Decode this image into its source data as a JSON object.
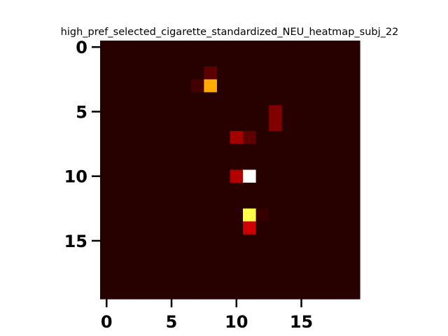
{
  "chart_data": {
    "type": "heatmap",
    "title": "high_pref_selected_cigarette_standardized_NEU_heatmap_subj_22",
    "xlabel": "",
    "ylabel": "",
    "rows": 20,
    "cols": 20,
    "x_ticks": [
      0,
      5,
      10,
      15
    ],
    "y_ticks": [
      0,
      5,
      10,
      15
    ],
    "xlim": [
      -0.5,
      19.5
    ],
    "ylim": [
      19.5,
      -0.5
    ],
    "colormap": "hot",
    "vmin": 0,
    "vmax": 1,
    "background_value": 0.04,
    "cells": [
      {
        "row": 2,
        "col": 8,
        "value": 0.12
      },
      {
        "row": 3,
        "col": 7,
        "value": 0.08
      },
      {
        "row": 3,
        "col": 8,
        "value": 0.62
      },
      {
        "row": 5,
        "col": 13,
        "value": 0.17
      },
      {
        "row": 6,
        "col": 13,
        "value": 0.17
      },
      {
        "row": 7,
        "col": 10,
        "value": 0.22
      },
      {
        "row": 7,
        "col": 11,
        "value": 0.12
      },
      {
        "row": 10,
        "col": 10,
        "value": 0.24
      },
      {
        "row": 10,
        "col": 11,
        "value": 1.0
      },
      {
        "row": 13,
        "col": 11,
        "value": 0.82
      },
      {
        "row": 13,
        "col": 12,
        "value": 0.06
      },
      {
        "row": 14,
        "col": 11,
        "value": 0.28
      }
    ],
    "grid": false,
    "colorbar": false
  }
}
